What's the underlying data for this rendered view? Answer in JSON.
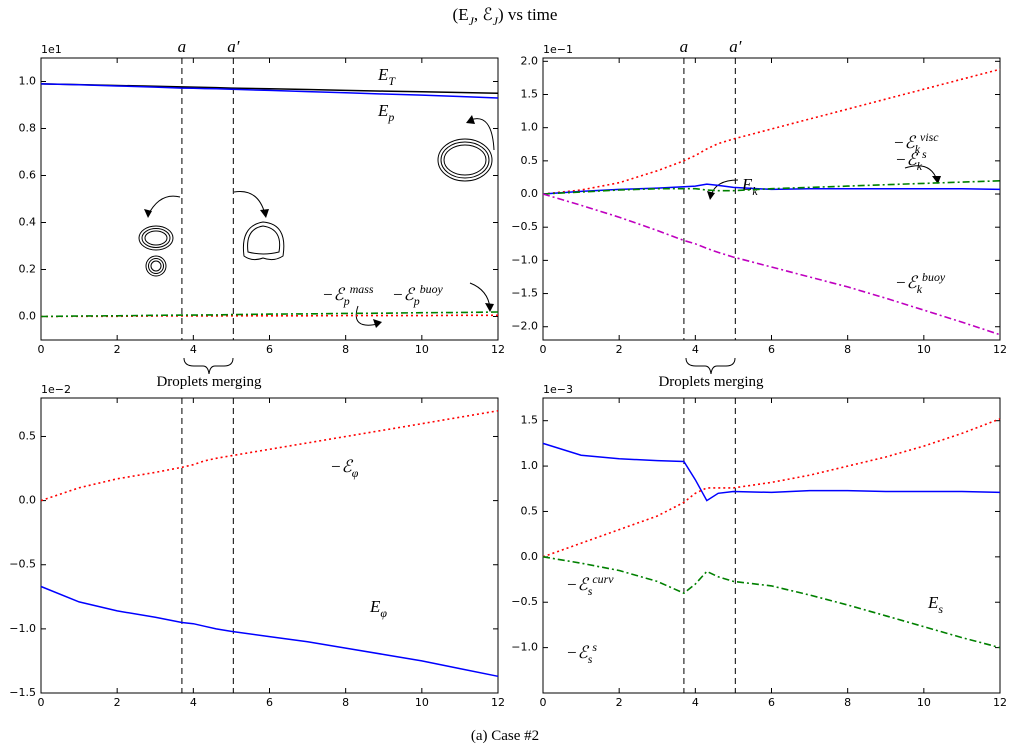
{
  "title": "(E_J, ℰ_J) vs time",
  "caption": "(a) Case #2",
  "notes": [
    "Droplets merging",
    "Droplets merging"
  ],
  "chart_data": [
    {
      "type": "line",
      "offset_label": "1e1",
      "x": [
        0,
        1,
        2,
        3,
        3.7,
        4,
        4.3,
        4.6,
        5,
        6,
        7,
        8,
        9,
        10,
        11,
        12
      ],
      "xlim": [
        0,
        12
      ],
      "xticks": [
        0,
        2,
        4,
        6,
        8,
        10,
        12
      ],
      "ylim": [
        -0.1,
        1.1
      ],
      "yticks": [
        {
          "value": 0,
          "label": "0.0"
        },
        0.2,
        0.4,
        0.6,
        0.8,
        {
          "value": 1,
          "label": "1.0"
        }
      ],
      "vlines": [
        3.7,
        5.05
      ],
      "vline_labels": [
        "a",
        "a′"
      ],
      "series": [
        {
          "name": "E_T",
          "color": "#000000",
          "linestyle": "solid",
          "values": [
            0.99,
            0.987,
            0.983,
            0.98,
            0.977,
            0.976,
            0.975,
            0.974,
            0.972,
            0.969,
            0.966,
            0.962,
            0.959,
            0.956,
            0.953,
            0.95
          ]
        },
        {
          "name": "E_p",
          "color": "#0000ff",
          "linestyle": "solid",
          "values": [
            0.99,
            0.986,
            0.981,
            0.976,
            0.972,
            0.971,
            0.97,
            0.969,
            0.967,
            0.962,
            0.957,
            0.952,
            0.947,
            0.942,
            0.936,
            0.93
          ]
        },
        {
          "name": "−ℰ_p^mass",
          "color": "#ff0000",
          "linestyle": "dotted",
          "values": [
            0,
            0.001,
            0.001,
            0.002,
            0.002,
            0.002,
            0.002,
            0.002,
            0.003,
            0.003,
            0.003,
            0.004,
            0.004,
            0.004,
            0.005,
            0.005
          ]
        },
        {
          "name": "−ℰ_p^buoy",
          "color": "#008000",
          "linestyle": "dashdot",
          "values": [
            0,
            0.002,
            0.003,
            0.005,
            0.006,
            0.006,
            0.007,
            0.007,
            0.008,
            0.01,
            0.011,
            0.013,
            0.014,
            0.016,
            0.017,
            0.019
          ]
        }
      ]
    },
    {
      "type": "line",
      "offset_label": "1e−1",
      "x": [
        0,
        1,
        2,
        3,
        3.7,
        4,
        4.3,
        4.6,
        5,
        6,
        7,
        8,
        9,
        10,
        11,
        12
      ],
      "xlim": [
        0,
        12
      ],
      "xticks": [
        0,
        2,
        4,
        6,
        8,
        10,
        12
      ],
      "ylim": [
        -2.2,
        2.05
      ],
      "yticks": [
        {
          "value": -2,
          "label": "−2.0"
        },
        {
          "value": -1.5,
          "label": "−1.5"
        },
        {
          "value": -1,
          "label": "−1.0"
        },
        {
          "value": -0.5,
          "label": "−0.5"
        },
        {
          "value": 0,
          "label": "0.0"
        },
        0.5,
        {
          "value": 1,
          "label": "1.0"
        },
        1.5,
        {
          "value": 2,
          "label": "2.0"
        }
      ],
      "vlines": [
        3.7,
        5.05
      ],
      "vline_labels": [
        "a",
        "a′"
      ],
      "series": [
        {
          "name": "−ℰ_k^visc",
          "color": "#ff0000",
          "linestyle": "dotted",
          "values": [
            0,
            0.06,
            0.17,
            0.35,
            0.5,
            0.58,
            0.68,
            0.76,
            0.83,
            0.98,
            1.13,
            1.28,
            1.43,
            1.58,
            1.73,
            1.88
          ]
        },
        {
          "name": "E_k",
          "color": "#0000ff",
          "linestyle": "solid",
          "values": [
            0,
            0.04,
            0.07,
            0.09,
            0.11,
            0.12,
            0.15,
            0.13,
            0.1,
            0.07,
            0.08,
            0.08,
            0.08,
            0.08,
            0.08,
            0.07
          ]
        },
        {
          "name": "−ℰ_k^s",
          "color": "#008000",
          "linestyle": "dashdot",
          "values": [
            0,
            0.03,
            0.06,
            0.08,
            0.08,
            0.08,
            0.06,
            0.05,
            0.05,
            0.08,
            0.1,
            0.12,
            0.14,
            0.16,
            0.18,
            0.2
          ]
        },
        {
          "name": "−ℰ_k^buoy",
          "color": "#bf00bf",
          "linestyle": "dashdot",
          "values": [
            0,
            -0.17,
            -0.35,
            -0.55,
            -0.7,
            -0.75,
            -0.82,
            -0.88,
            -0.95,
            -1.1,
            -1.25,
            -1.4,
            -1.57,
            -1.75,
            -1.93,
            -2.12
          ]
        }
      ]
    },
    {
      "type": "line",
      "offset_label": "1e−2",
      "x": [
        0,
        1,
        2,
        3,
        3.7,
        4,
        4.3,
        4.6,
        5,
        6,
        7,
        8,
        9,
        10,
        11,
        12
      ],
      "xlim": [
        0,
        12
      ],
      "xticks": [
        0,
        2,
        4,
        6,
        8,
        10,
        12
      ],
      "ylim": [
        -1.5,
        0.8
      ],
      "yticks": [
        {
          "value": -1.5,
          "label": "−1.5"
        },
        {
          "value": -1,
          "label": "−1.0"
        },
        {
          "value": -0.5,
          "label": "−0.5"
        },
        {
          "value": 0,
          "label": "0.0"
        },
        0.5
      ],
      "vlines": [
        3.7,
        5.05
      ],
      "series": [
        {
          "name": "−ℰ_φ",
          "color": "#ff0000",
          "linestyle": "dotted",
          "values": [
            0,
            0.1,
            0.17,
            0.22,
            0.26,
            0.28,
            0.31,
            0.33,
            0.35,
            0.4,
            0.45,
            0.5,
            0.55,
            0.6,
            0.65,
            0.7
          ]
        },
        {
          "name": "E_φ",
          "color": "#0000ff",
          "linestyle": "solid",
          "values": [
            -0.67,
            -0.79,
            -0.86,
            -0.91,
            -0.95,
            -0.96,
            -0.98,
            -1.0,
            -1.02,
            -1.06,
            -1.1,
            -1.15,
            -1.2,
            -1.25,
            -1.31,
            -1.37
          ]
        }
      ]
    },
    {
      "type": "line",
      "offset_label": "1e−3",
      "x": [
        0,
        1,
        2,
        3,
        3.7,
        4,
        4.3,
        4.6,
        5,
        6,
        7,
        8,
        9,
        10,
        11,
        12
      ],
      "xlim": [
        0,
        12
      ],
      "xticks": [
        0,
        2,
        4,
        6,
        8,
        10,
        12
      ],
      "ylim": [
        -1.5,
        1.75
      ],
      "yticks": [
        {
          "value": -1,
          "label": "−1.0"
        },
        {
          "value": -0.5,
          "label": "−0.5"
        },
        {
          "value": 0,
          "label": "0.0"
        },
        0.5,
        {
          "value": 1,
          "label": "1.0"
        },
        1.5
      ],
      "vlines": [
        3.7,
        5.05
      ],
      "series": [
        {
          "name": "E_s",
          "color": "#0000ff",
          "linestyle": "solid",
          "values": [
            1.25,
            1.12,
            1.08,
            1.06,
            1.05,
            0.85,
            0.62,
            0.7,
            0.72,
            0.71,
            0.73,
            0.73,
            0.72,
            0.72,
            0.72,
            0.71
          ]
        },
        {
          "name": "−ℰ_s^curv",
          "color": "#ff0000",
          "linestyle": "dotted",
          "values": [
            0,
            0.15,
            0.3,
            0.45,
            0.6,
            0.7,
            0.76,
            0.76,
            0.76,
            0.82,
            0.9,
            1.0,
            1.1,
            1.22,
            1.36,
            1.52
          ]
        },
        {
          "name": "−ℰ_s^s",
          "color": "#008000",
          "linestyle": "dashdot",
          "values": [
            0,
            -0.07,
            -0.15,
            -0.27,
            -0.4,
            -0.3,
            -0.16,
            -0.22,
            -0.27,
            -0.32,
            -0.42,
            -0.53,
            -0.65,
            -0.77,
            -0.89,
            -1.0
          ]
        }
      ]
    }
  ]
}
